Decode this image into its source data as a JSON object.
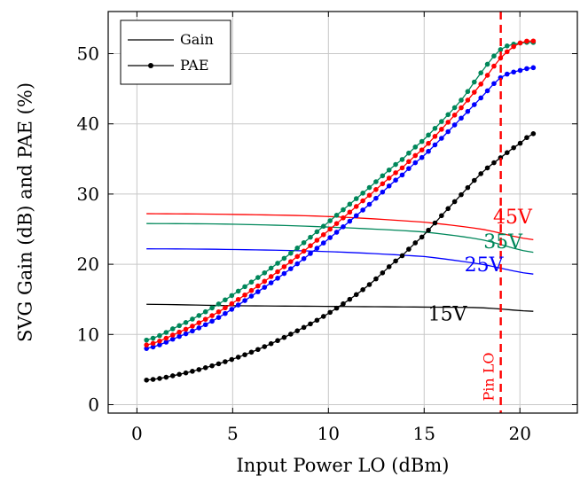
{
  "chart_data": {
    "type": "line",
    "title": "",
    "xlabel": "Input Power LO (dBm)",
    "ylabel": "SVG Gain (dB) and PAE (%)",
    "xlim": [
      -1.5,
      23
    ],
    "ylim": [
      -1.2,
      56
    ],
    "xticks": [
      0,
      5,
      10,
      15,
      20
    ],
    "yticks": [
      0,
      10,
      20,
      30,
      40,
      50
    ],
    "grid": true,
    "legend": {
      "position": "top-left",
      "entries": [
        {
          "label": "Gain",
          "style": "line"
        },
        {
          "label": "PAE",
          "style": "line-with-dots"
        }
      ]
    },
    "gain_series": [
      {
        "name": "15V",
        "color": "#000000",
        "points": [
          [
            0.5,
            14.3
          ],
          [
            5,
            14.1
          ],
          [
            10,
            14.0
          ],
          [
            15,
            13.9
          ],
          [
            18,
            13.8
          ],
          [
            20.7,
            13.3
          ]
        ]
      },
      {
        "name": "25V",
        "color": "#0000ff",
        "points": [
          [
            0.5,
            22.2
          ],
          [
            5,
            22.1
          ],
          [
            10,
            21.8
          ],
          [
            15,
            21.1
          ],
          [
            18,
            20.0
          ],
          [
            20.7,
            18.6
          ]
        ]
      },
      {
        "name": "35V",
        "color": "#00875a",
        "points": [
          [
            0.5,
            25.8
          ],
          [
            5,
            25.7
          ],
          [
            10,
            25.3
          ],
          [
            15,
            24.6
          ],
          [
            18,
            23.5
          ],
          [
            20.7,
            21.7
          ]
        ]
      },
      {
        "name": "45V",
        "color": "#ff0000",
        "points": [
          [
            0.5,
            27.2
          ],
          [
            5,
            27.1
          ],
          [
            10,
            26.8
          ],
          [
            15,
            26.0
          ],
          [
            18,
            25.0
          ],
          [
            20.7,
            23.5
          ]
        ]
      }
    ],
    "pae_series": [
      {
        "name": "15V",
        "color": "#000000",
        "points": [
          [
            0.5,
            3.5
          ],
          [
            2,
            4.2
          ],
          [
            4,
            5.6
          ],
          [
            6,
            7.5
          ],
          [
            8,
            10.0
          ],
          [
            10,
            13.0
          ],
          [
            12,
            16.8
          ],
          [
            14,
            21.5
          ],
          [
            15,
            24.2
          ],
          [
            16,
            27.2
          ],
          [
            17,
            30.1
          ],
          [
            18,
            33.0
          ],
          [
            19,
            35.2
          ],
          [
            20,
            37.2
          ],
          [
            20.7,
            38.6
          ]
        ]
      },
      {
        "name": "25V",
        "color": "#0000ff",
        "points": [
          [
            0.5,
            8.0
          ],
          [
            2,
            9.5
          ],
          [
            4,
            12.0
          ],
          [
            6,
            15.5
          ],
          [
            8,
            19.3
          ],
          [
            10,
            23.6
          ],
          [
            12,
            28.2
          ],
          [
            14,
            33.0
          ],
          [
            15,
            35.5
          ],
          [
            16,
            38.2
          ],
          [
            17,
            41.0
          ],
          [
            18,
            43.8
          ],
          [
            19,
            46.6
          ],
          [
            20,
            47.6
          ],
          [
            20.7,
            48.0
          ]
        ]
      },
      {
        "name": "35V",
        "color": "#00875a",
        "points": [
          [
            0.5,
            9.2
          ],
          [
            2,
            11.0
          ],
          [
            4,
            13.9
          ],
          [
            6,
            17.5
          ],
          [
            8,
            21.5
          ],
          [
            10,
            26.0
          ],
          [
            12,
            30.6
          ],
          [
            14,
            35.2
          ],
          [
            15,
            37.8
          ],
          [
            16,
            40.6
          ],
          [
            17,
            43.6
          ],
          [
            18,
            47.4
          ],
          [
            19,
            50.6
          ],
          [
            20,
            51.5
          ],
          [
            20.7,
            51.6
          ]
        ]
      },
      {
        "name": "45V",
        "color": "#ff0000",
        "points": [
          [
            0.5,
            8.5
          ],
          [
            2,
            10.1
          ],
          [
            4,
            12.8
          ],
          [
            6,
            16.3
          ],
          [
            8,
            20.3
          ],
          [
            10,
            24.8
          ],
          [
            12,
            29.5
          ],
          [
            14,
            34.0
          ],
          [
            15,
            36.6
          ],
          [
            16,
            39.5
          ],
          [
            17,
            42.5
          ],
          [
            18,
            45.8
          ],
          [
            19,
            49.4
          ],
          [
            20,
            51.5
          ],
          [
            20.7,
            51.8
          ]
        ]
      }
    ],
    "series_labels": [
      {
        "text": "45V",
        "color": "#ff0000",
        "x": 18.6,
        "y": 25.8
      },
      {
        "text": "35V",
        "color": "#00875a",
        "x": 18.1,
        "y": 22.3
      },
      {
        "text": "25V",
        "color": "#0000ff",
        "x": 17.1,
        "y": 19.0
      },
      {
        "text": "15V",
        "color": "#000000",
        "x": 15.2,
        "y": 12.0
      }
    ],
    "marker_line": {
      "label": "Pin LO",
      "x": 19.0,
      "color": "#ff0000"
    }
  }
}
